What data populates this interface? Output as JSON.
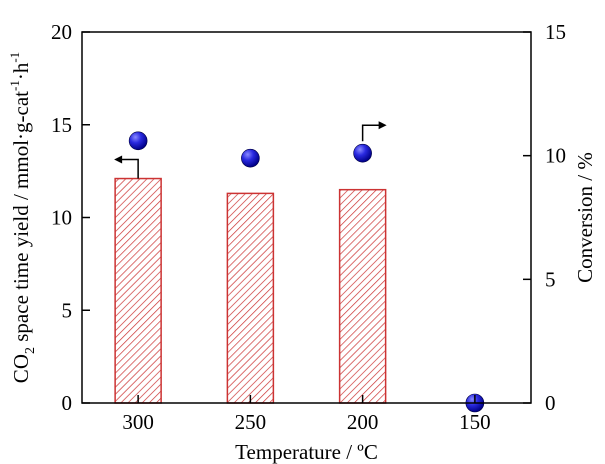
{
  "chart_data": {
    "type": "bar",
    "categories": [
      "300",
      "250",
      "200",
      "150"
    ],
    "xlabel": "Temperature / ºC",
    "series": [
      {
        "kind": "bar",
        "axis": "left",
        "values": [
          12.1,
          11.3,
          11.5,
          0
        ],
        "fill": "hatched red",
        "bar_color": "#cc3333"
      },
      {
        "kind": "scatter",
        "axis": "right",
        "values": [
          10.6,
          9.9,
          10.1,
          0
        ],
        "marker_color": "#2222cc"
      }
    ],
    "y_left": {
      "label_parts": [
        "CO",
        "2",
        " space time yield / mmol·g-cat",
        "-1",
        "·h",
        "-1"
      ],
      "range": [
        0,
        20
      ],
      "ticks": [
        "0",
        "5",
        "10",
        "15",
        "20"
      ]
    },
    "y_right": {
      "label": "Conversion / %",
      "range": [
        0,
        15
      ],
      "ticks": [
        "0",
        "5",
        "10",
        "15"
      ]
    },
    "annotations": [
      {
        "type": "arrow",
        "direction": "left",
        "points_to": "left axis",
        "attached_to_bar": "300"
      },
      {
        "type": "arrow",
        "direction": "right",
        "points_to": "right axis",
        "attached_to_marker": "200"
      }
    ],
    "grid": false
  }
}
